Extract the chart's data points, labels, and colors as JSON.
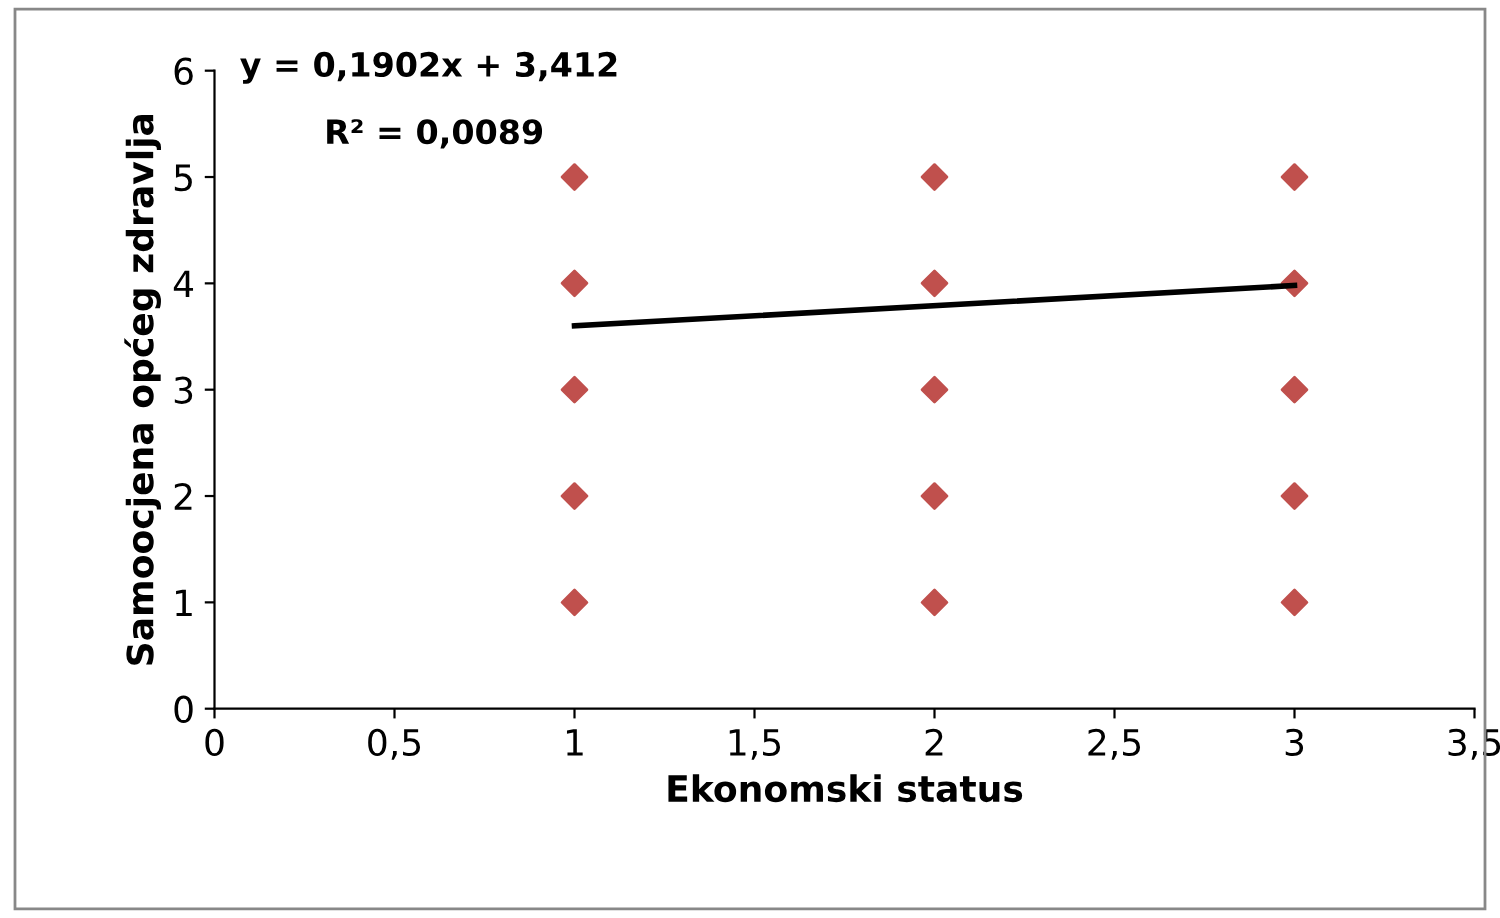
{
  "chart_data": {
    "type": "scatter",
    "xlabel": "Ekonomski status",
    "ylabel": "Samoocjena općeg zdravlja",
    "annotations": [
      "y = 0,1902x + 3,412",
      "R² = 0,0089"
    ],
    "series": [
      {
        "color": "#c0504d",
        "marker": "diamond",
        "x": [
          1,
          1,
          1,
          1,
          1,
          2,
          2,
          2,
          2,
          2,
          3,
          3,
          3,
          3,
          3
        ],
        "values": [
          1,
          2,
          3,
          4,
          5,
          1,
          2,
          3,
          4,
          5,
          1,
          2,
          3,
          4,
          5
        ]
      },
      {
        "type": "line",
        "color": "#000000",
        "marker": "none",
        "x": [
          1,
          3
        ],
        "values": [
          3.6,
          3.98
        ]
      }
    ],
    "xlim": [
      0,
      3.5
    ],
    "xticks": [
      0,
      {
        "value": 0.5,
        "label": "0,5"
      },
      1,
      {
        "value": 1.5,
        "label": "1,5"
      },
      2,
      {
        "value": 2.5,
        "label": "2,5"
      },
      3,
      {
        "value": 3.5,
        "label": "3,5"
      }
    ],
    "ylim": [
      0,
      6
    ],
    "yticks": [
      0,
      1,
      2,
      3,
      4,
      5,
      6
    ],
    "grid": false,
    "legend": false
  }
}
